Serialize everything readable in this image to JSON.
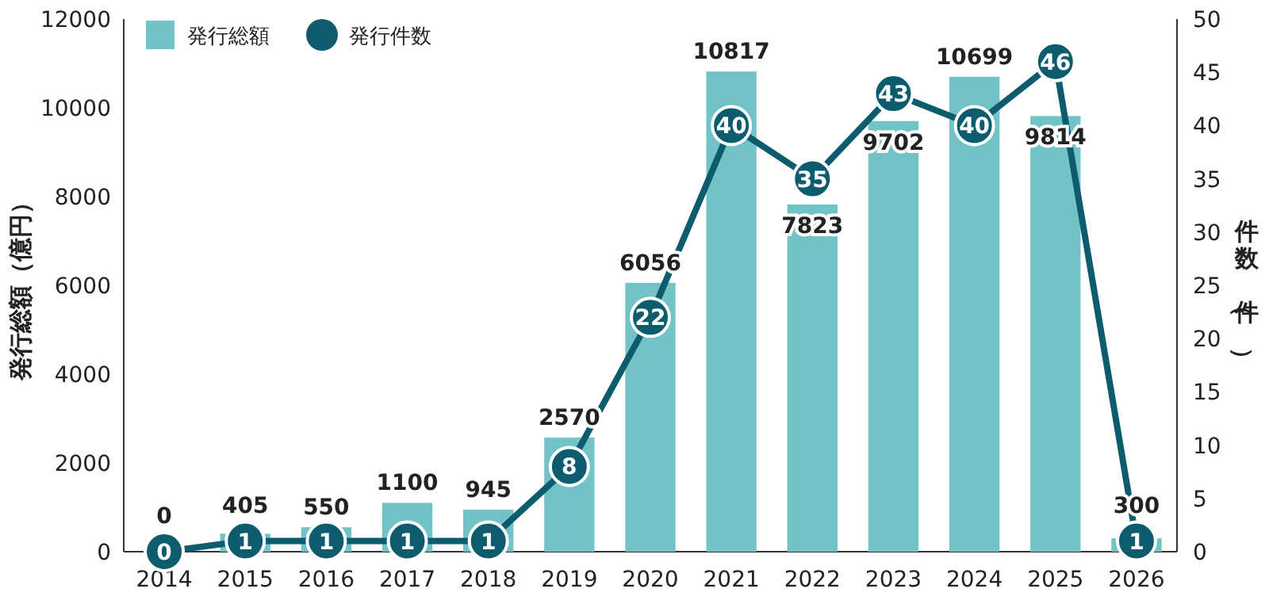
{
  "chart_data": {
    "type": "bar",
    "categories": [
      "2014",
      "2015",
      "2016",
      "2017",
      "2018",
      "2019",
      "2020",
      "2021",
      "2022",
      "2023",
      "2024",
      "2025",
      "2026"
    ],
    "series": [
      {
        "name": "発行総額",
        "color": "#72c3c6",
        "values": [
          0,
          405,
          550,
          1100,
          945,
          2570,
          6056,
          10817,
          7823,
          9702,
          10699,
          9814,
          300
        ]
      },
      {
        "name": "発行件数",
        "type": "line",
        "axis": "y2",
        "color": "#0d5c6e",
        "marker": "circle",
        "values": [
          0,
          1,
          1,
          1,
          1,
          8,
          22,
          40,
          35,
          43,
          40,
          46,
          1
        ]
      }
    ],
    "ylabel": "発行総額（億円）",
    "y2label": "件数（件）",
    "ylim": [
      0,
      12000
    ],
    "yticks": [
      0,
      2000,
      4000,
      6000,
      8000,
      10000,
      12000
    ],
    "y2lim": [
      0,
      50
    ],
    "y2ticks": [
      0,
      5,
      10,
      15,
      20,
      25,
      30,
      35,
      40,
      45,
      50
    ],
    "legend": "top left",
    "data_labels": true
  }
}
